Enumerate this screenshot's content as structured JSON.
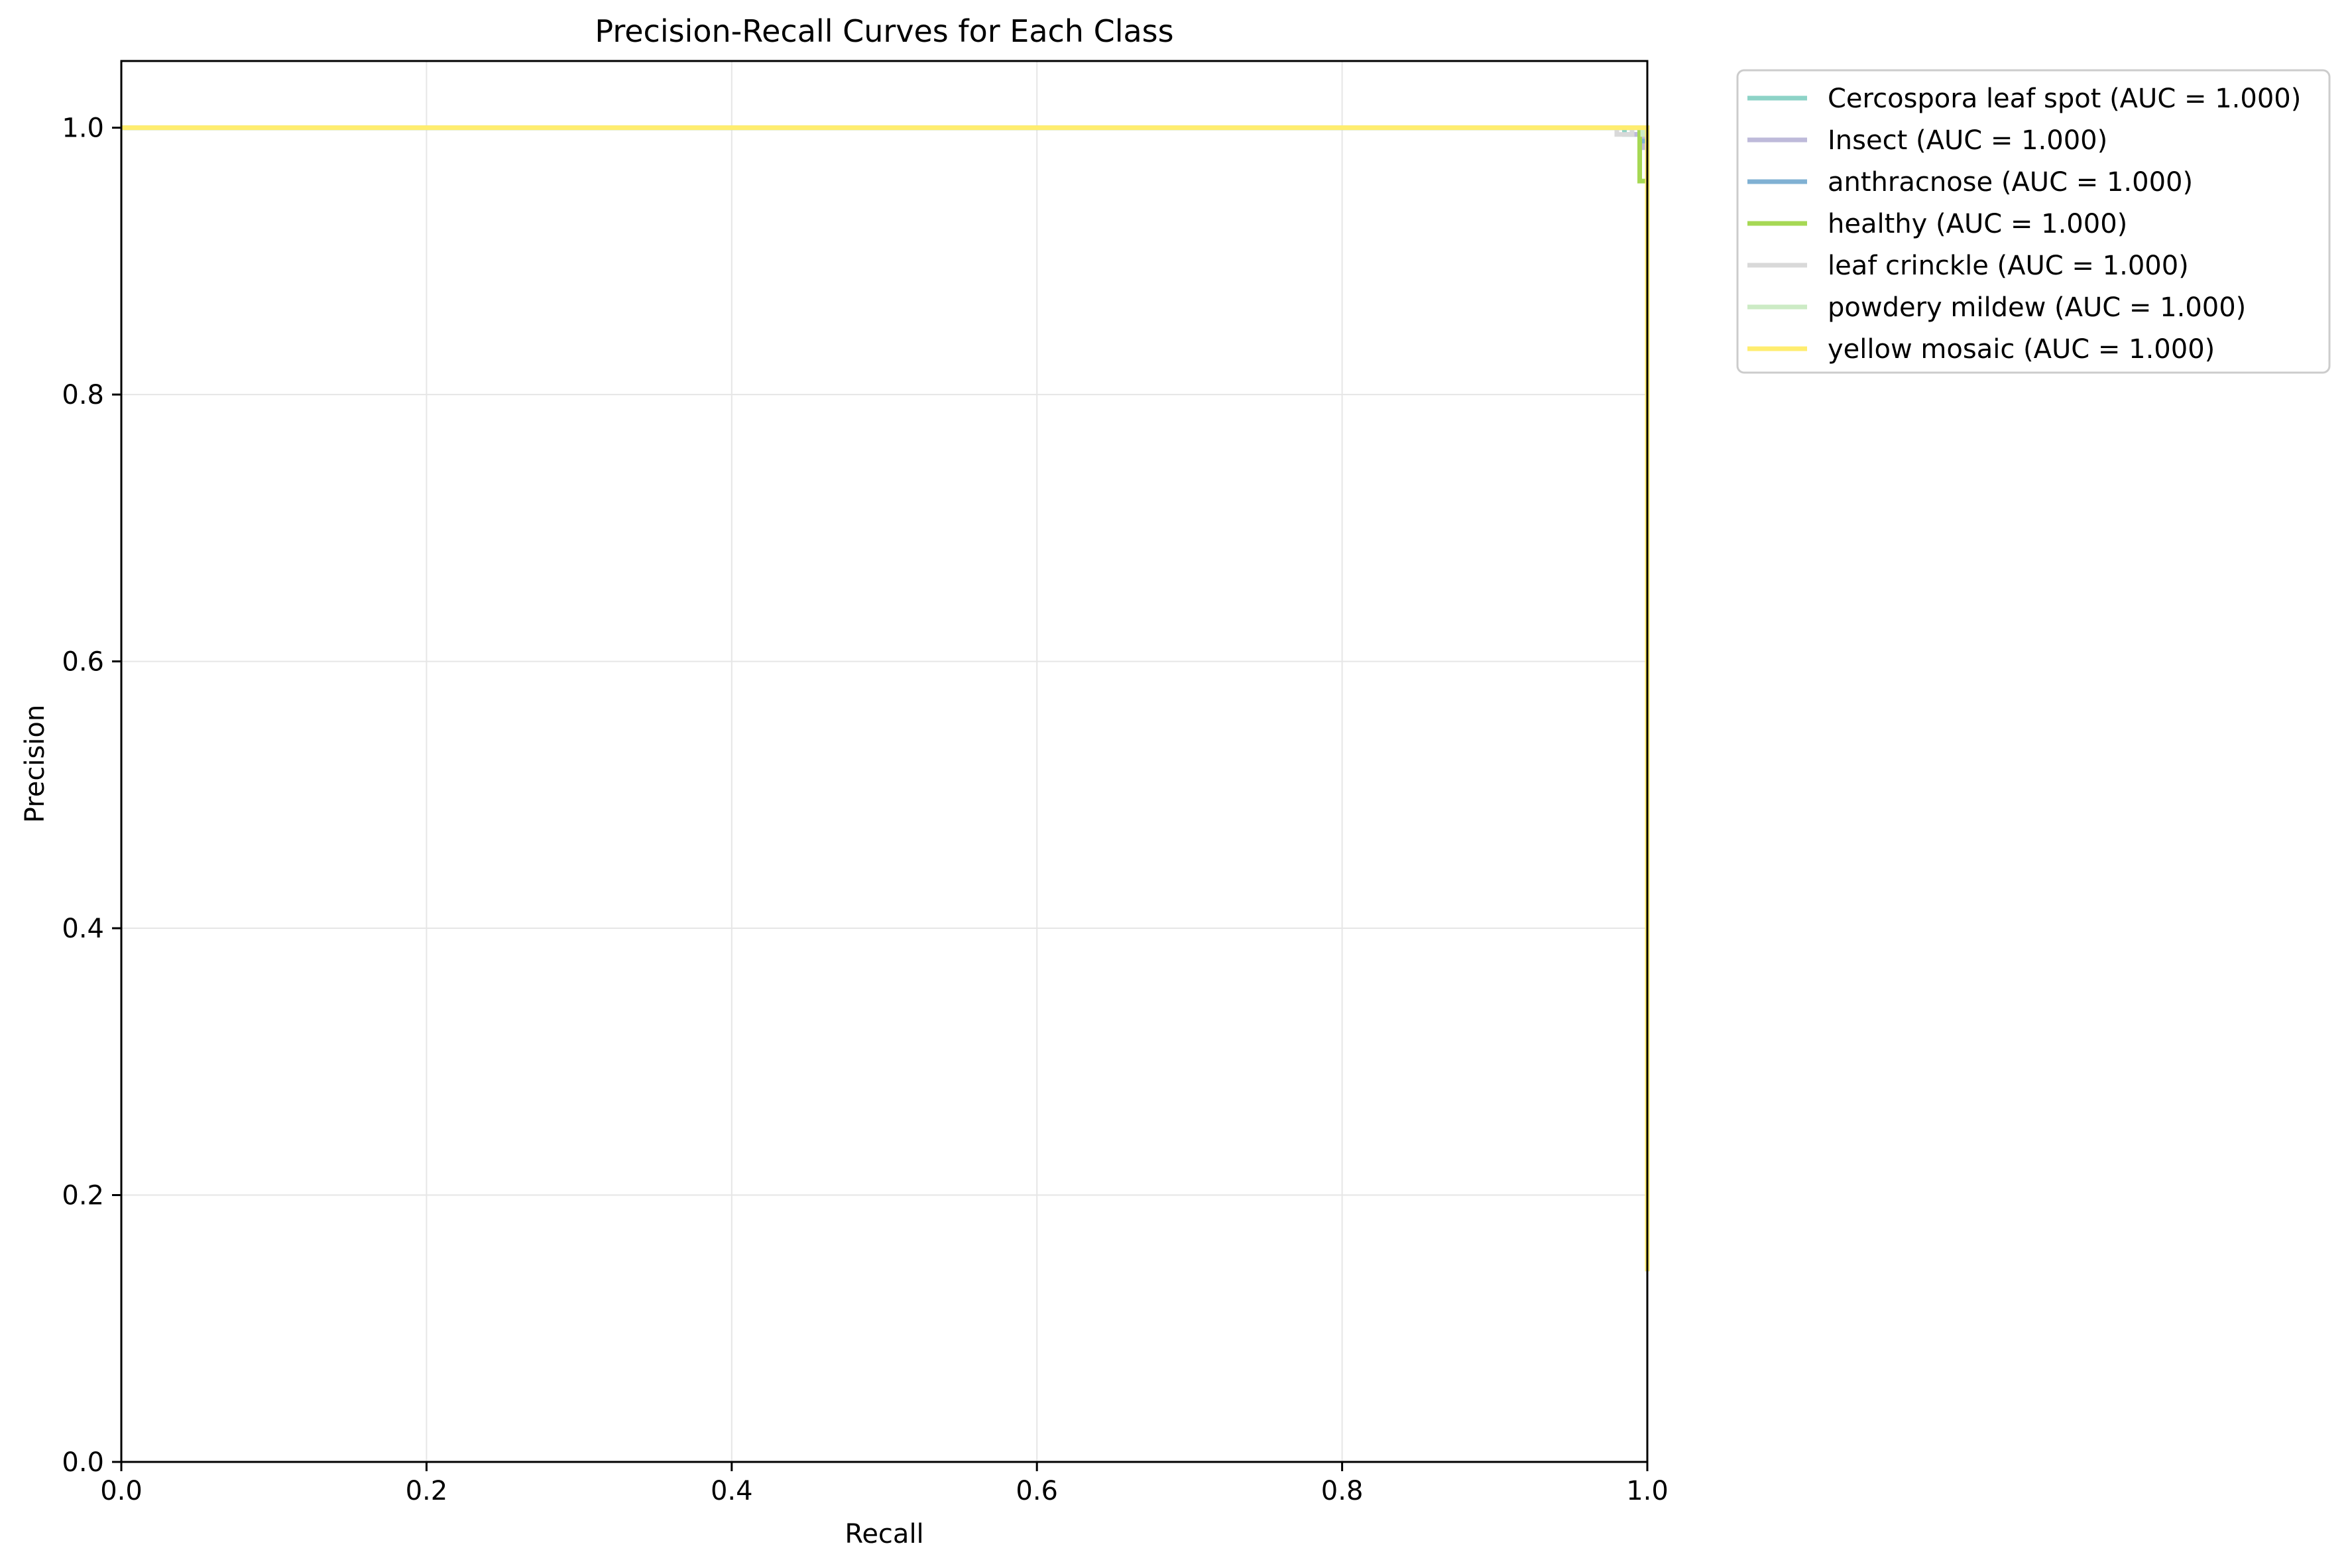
{
  "chart_data": {
    "type": "line",
    "title": "Precision-Recall Curves for Each Class",
    "xlabel": "Recall",
    "ylabel": "Precision",
    "xlim": [
      0.0,
      1.0
    ],
    "ylim": [
      0.0,
      1.05
    ],
    "xticks": [
      "0.0",
      "0.2",
      "0.4",
      "0.6",
      "0.8",
      "1.0"
    ],
    "yticks": [
      "0.0",
      "0.2",
      "0.4",
      "0.6",
      "0.8",
      "1.0"
    ],
    "grid": true,
    "legend_position": "outside-upper-right",
    "series": [
      {
        "name": "Cercospora leaf spot (AUC = 1.000)",
        "color": "#8dd3c7",
        "points": [
          [
            0.0,
            1.0
          ],
          [
            0.985,
            1.0
          ],
          [
            0.985,
            0.995
          ],
          [
            1.0,
            0.995
          ],
          [
            1.0,
            0.143
          ]
        ]
      },
      {
        "name": "Insect (AUC = 1.000)",
        "color": "#bebada",
        "points": [
          [
            0.0,
            1.0
          ],
          [
            0.99,
            1.0
          ],
          [
            0.99,
            0.995
          ],
          [
            0.998,
            0.995
          ],
          [
            0.998,
            0.985
          ],
          [
            1.0,
            0.985
          ],
          [
            1.0,
            0.143
          ]
        ]
      },
      {
        "name": "anthracnose (AUC = 1.000)",
        "color": "#80b1d3",
        "points": [
          [
            0.0,
            1.0
          ],
          [
            0.995,
            1.0
          ],
          [
            0.995,
            0.99
          ],
          [
            1.0,
            0.99
          ],
          [
            1.0,
            0.143
          ]
        ]
      },
      {
        "name": "healthy (AUC = 1.000)",
        "color": "#a6d854",
        "points": [
          [
            0.0,
            1.0
          ],
          [
            0.995,
            1.0
          ],
          [
            0.995,
            0.96
          ],
          [
            1.0,
            0.96
          ],
          [
            1.0,
            0.143
          ]
        ]
      },
      {
        "name": "leaf crinckle (AUC = 1.000)",
        "color": "#d9d9d9",
        "points": [
          [
            0.0,
            1.0
          ],
          [
            0.98,
            1.0
          ],
          [
            0.98,
            0.995
          ],
          [
            0.99,
            0.995
          ],
          [
            0.99,
            1.0
          ],
          [
            1.0,
            1.0
          ],
          [
            1.0,
            0.143
          ]
        ]
      },
      {
        "name": "powdery mildew (AUC = 1.000)",
        "color": "#ccebc5",
        "points": [
          [
            0.0,
            1.0
          ],
          [
            0.997,
            1.0
          ],
          [
            0.997,
            0.995
          ],
          [
            1.0,
            0.995
          ],
          [
            1.0,
            0.143
          ]
        ]
      },
      {
        "name": "yellow mosaic (AUC = 1.000)",
        "color": "#ffed6f",
        "points": [
          [
            0.0,
            1.0
          ],
          [
            1.0,
            1.0
          ],
          [
            1.0,
            0.143
          ]
        ]
      }
    ]
  }
}
